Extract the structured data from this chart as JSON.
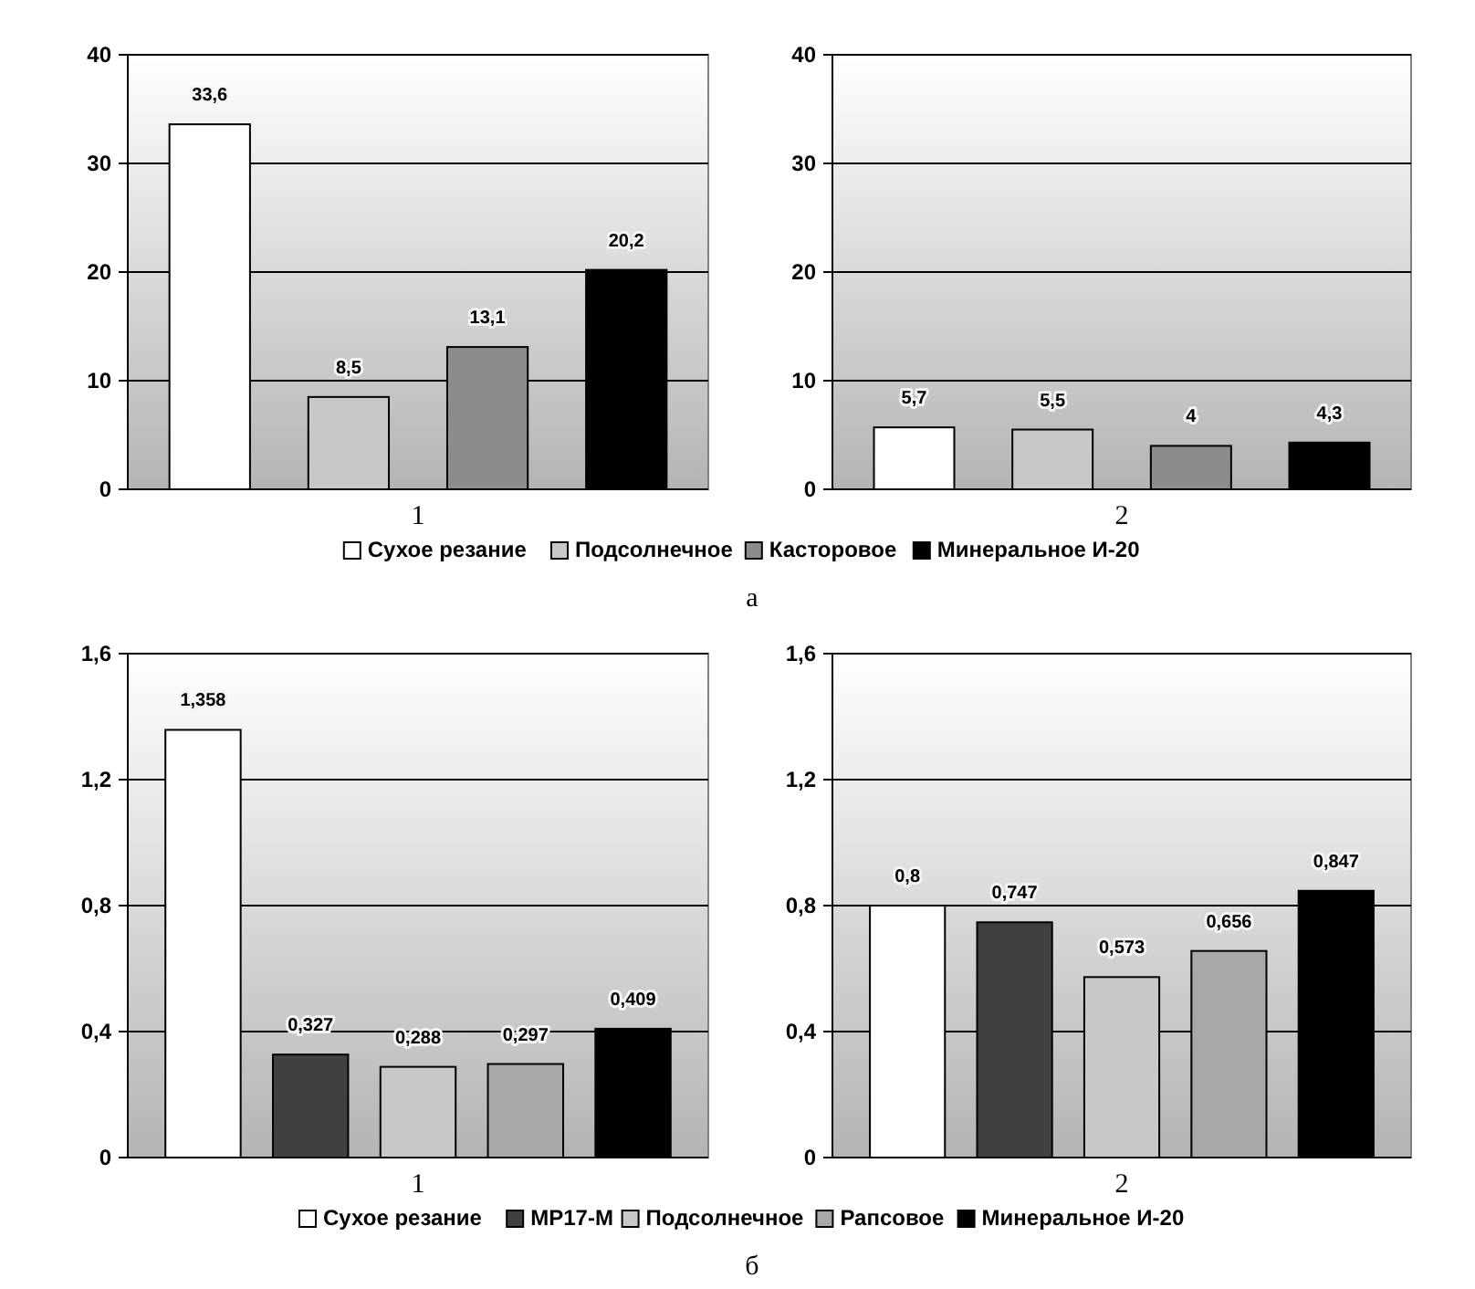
{
  "chart_data": [
    {
      "type": "bar",
      "categories": [
        "1"
      ],
      "series": [
        {
          "name": "Сухое резание",
          "color": "#ffffff",
          "values": [
            33.6
          ],
          "value_labels": [
            "33,6"
          ]
        },
        {
          "name": "Подсолнечное",
          "color": "#c8c8c8",
          "values": [
            8.5
          ],
          "value_labels": [
            "8,5"
          ]
        },
        {
          "name": "Касторовое",
          "color": "#8c8c8c",
          "values": [
            13.1
          ],
          "value_labels": [
            "13,1"
          ]
        },
        {
          "name": "Минеральное И-20",
          "color": "#000000",
          "values": [
            20.2
          ],
          "value_labels": [
            "20,2"
          ]
        }
      ],
      "ylim": [
        0,
        40
      ],
      "yticks": [
        0,
        10,
        20,
        30,
        40
      ],
      "grid": "y",
      "legend": "bottom",
      "annotations": [
        "а"
      ]
    },
    {
      "type": "bar",
      "categories": [
        "2"
      ],
      "series": [
        {
          "color": "#ffffff",
          "values": [
            5.7
          ],
          "value_labels": [
            "5,7"
          ]
        },
        {
          "color": "#c8c8c8",
          "values": [
            5.5
          ],
          "value_labels": [
            "5,5"
          ]
        },
        {
          "color": "#8c8c8c",
          "values": [
            4
          ],
          "value_labels": [
            "4"
          ]
        },
        {
          "color": "#000000",
          "values": [
            4.3
          ],
          "value_labels": [
            "4,3"
          ]
        }
      ],
      "ylim": [
        0,
        40
      ],
      "yticks": [
        0,
        10,
        20,
        30,
        40
      ],
      "grid": "y",
      "legend": false
    },
    {
      "type": "bar",
      "categories": [
        "1"
      ],
      "series": [
        {
          "name": "Сухое резание",
          "color": "#ffffff",
          "values": [
            1.358
          ],
          "value_labels": [
            "1,358"
          ]
        },
        {
          "name": "МР17-М",
          "color": "#404040",
          "values": [
            0.327
          ],
          "value_labels": [
            "0,327"
          ]
        },
        {
          "name": "Подсолнечное",
          "color": "#c8c8c8",
          "values": [
            0.288
          ],
          "value_labels": [
            "0,288"
          ]
        },
        {
          "name": "Рапсовое",
          "color": "#a8a8a8",
          "values": [
            0.297
          ],
          "value_labels": [
            "0,297"
          ]
        },
        {
          "name": "Минеральное И-20",
          "color": "#000000",
          "values": [
            0.409
          ],
          "value_labels": [
            "0,409"
          ]
        }
      ],
      "ylim": [
        0,
        1.6
      ],
      "yticks": [
        0,
        {
          "value": 0.4,
          "label": "0,4"
        },
        {
          "value": 0.8,
          "label": "0,8"
        },
        {
          "value": 1.2,
          "label": "1,2"
        },
        {
          "value": 1.6,
          "label": "1,6"
        }
      ],
      "grid": "y",
      "legend": "bottom",
      "annotations": [
        "б"
      ]
    },
    {
      "type": "bar",
      "categories": [
        "2"
      ],
      "series": [
        {
          "color": "#ffffff",
          "values": [
            0.8
          ],
          "value_labels": [
            "0,8"
          ]
        },
        {
          "color": "#404040",
          "values": [
            0.747
          ],
          "value_labels": [
            "0,747"
          ]
        },
        {
          "color": "#c8c8c8",
          "values": [
            0.573
          ],
          "value_labels": [
            "0,573"
          ]
        },
        {
          "color": "#a8a8a8",
          "values": [
            0.656
          ],
          "value_labels": [
            "0,656"
          ]
        },
        {
          "color": "#000000",
          "values": [
            0.847
          ],
          "value_labels": [
            "0,847"
          ]
        }
      ],
      "ylim": [
        0,
        1.6
      ],
      "yticks": [
        0,
        {
          "value": 0.4,
          "label": "0,4"
        },
        {
          "value": 0.8,
          "label": "0,8"
        },
        {
          "value": 1.2,
          "label": "1,2"
        },
        {
          "value": 1.6,
          "label": "1,6"
        }
      ],
      "grid": "y",
      "legend": false
    }
  ]
}
